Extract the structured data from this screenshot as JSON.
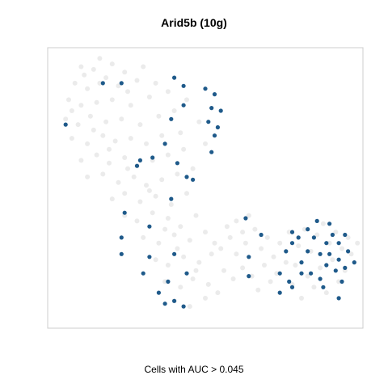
{
  "chart_data": {
    "type": "scatter",
    "title": "Arid5b (10g)",
    "caption": "Cells with AUC > 0.045",
    "xlim": [
      0,
      1
    ],
    "ylim": [
      0,
      1
    ],
    "axes_visible": false,
    "grid": false,
    "colors": {
      "background_points": "#e6e6e6",
      "highlight_points": "#1f5a8a",
      "frame": "#cccccc"
    },
    "background_points": [
      [
        0.1,
        0.94
      ],
      [
        0.14,
        0.93
      ],
      [
        0.2,
        0.95
      ],
      [
        0.24,
        0.92
      ],
      [
        0.3,
        0.94
      ],
      [
        0.08,
        0.88
      ],
      [
        0.12,
        0.86
      ],
      [
        0.16,
        0.88
      ],
      [
        0.22,
        0.87
      ],
      [
        0.28,
        0.89
      ],
      [
        0.34,
        0.88
      ],
      [
        0.06,
        0.82
      ],
      [
        0.1,
        0.8
      ],
      [
        0.15,
        0.81
      ],
      [
        0.2,
        0.82
      ],
      [
        0.26,
        0.8
      ],
      [
        0.32,
        0.83
      ],
      [
        0.38,
        0.85
      ],
      [
        0.05,
        0.75
      ],
      [
        0.09,
        0.73
      ],
      [
        0.13,
        0.76
      ],
      [
        0.18,
        0.74
      ],
      [
        0.23,
        0.75
      ],
      [
        0.29,
        0.73
      ],
      [
        0.35,
        0.76
      ],
      [
        0.4,
        0.78
      ],
      [
        0.44,
        0.82
      ],
      [
        0.07,
        0.68
      ],
      [
        0.12,
        0.66
      ],
      [
        0.17,
        0.69
      ],
      [
        0.21,
        0.67
      ],
      [
        0.26,
        0.68
      ],
      [
        0.31,
        0.66
      ],
      [
        0.36,
        0.69
      ],
      [
        0.42,
        0.7
      ],
      [
        0.48,
        0.74
      ],
      [
        0.1,
        0.6
      ],
      [
        0.15,
        0.62
      ],
      [
        0.19,
        0.59
      ],
      [
        0.24,
        0.61
      ],
      [
        0.28,
        0.58
      ],
      [
        0.33,
        0.6
      ],
      [
        0.38,
        0.62
      ],
      [
        0.43,
        0.64
      ],
      [
        0.5,
        0.66
      ],
      [
        0.12,
        0.54
      ],
      [
        0.17,
        0.55
      ],
      [
        0.22,
        0.52
      ],
      [
        0.27,
        0.54
      ],
      [
        0.31,
        0.51
      ],
      [
        0.36,
        0.53
      ],
      [
        0.41,
        0.55
      ],
      [
        0.46,
        0.57
      ],
      [
        0.2,
        0.46
      ],
      [
        0.24,
        0.48
      ],
      [
        0.29,
        0.45
      ],
      [
        0.34,
        0.47
      ],
      [
        0.39,
        0.44
      ],
      [
        0.44,
        0.48
      ],
      [
        0.24,
        0.4
      ],
      [
        0.28,
        0.38
      ],
      [
        0.33,
        0.41
      ],
      [
        0.38,
        0.39
      ],
      [
        0.42,
        0.36
      ],
      [
        0.47,
        0.4
      ],
      [
        0.3,
        0.32
      ],
      [
        0.35,
        0.3
      ],
      [
        0.4,
        0.33
      ],
      [
        0.45,
        0.31
      ],
      [
        0.5,
        0.34
      ],
      [
        0.34,
        0.24
      ],
      [
        0.38,
        0.22
      ],
      [
        0.43,
        0.25
      ],
      [
        0.48,
        0.23
      ],
      [
        0.52,
        0.26
      ],
      [
        0.37,
        0.16
      ],
      [
        0.42,
        0.14
      ],
      [
        0.46,
        0.17
      ],
      [
        0.51,
        0.15
      ],
      [
        0.4,
        0.09
      ],
      [
        0.45,
        0.07
      ],
      [
        0.5,
        0.1
      ],
      [
        0.55,
        0.28
      ],
      [
        0.58,
        0.32
      ],
      [
        0.6,
        0.26
      ],
      [
        0.63,
        0.3
      ],
      [
        0.66,
        0.35
      ],
      [
        0.68,
        0.28
      ],
      [
        0.7,
        0.32
      ],
      [
        0.72,
        0.25
      ],
      [
        0.56,
        0.2
      ],
      [
        0.59,
        0.17
      ],
      [
        0.62,
        0.21
      ],
      [
        0.65,
        0.18
      ],
      [
        0.69,
        0.22
      ],
      [
        0.73,
        0.19
      ],
      [
        0.76,
        0.23
      ],
      [
        0.74,
        0.3
      ],
      [
        0.77,
        0.34
      ],
      [
        0.8,
        0.29
      ],
      [
        0.82,
        0.35
      ],
      [
        0.84,
        0.27
      ],
      [
        0.86,
        0.33
      ],
      [
        0.88,
        0.37
      ],
      [
        0.9,
        0.3
      ],
      [
        0.92,
        0.34
      ],
      [
        0.94,
        0.28
      ],
      [
        0.96,
        0.32
      ],
      [
        0.79,
        0.22
      ],
      [
        0.83,
        0.18
      ],
      [
        0.87,
        0.21
      ],
      [
        0.91,
        0.24
      ],
      [
        0.95,
        0.2
      ],
      [
        0.85,
        0.14
      ],
      [
        0.89,
        0.12
      ],
      [
        0.93,
        0.16
      ],
      [
        0.6,
        0.38
      ],
      [
        0.64,
        0.4
      ],
      [
        0.57,
        0.36
      ],
      [
        0.53,
        0.3
      ],
      [
        0.11,
        0.91
      ],
      [
        0.18,
        0.9
      ],
      [
        0.25,
        0.85
      ],
      [
        0.07,
        0.78
      ],
      [
        0.14,
        0.71
      ],
      [
        0.19,
        0.64
      ],
      [
        0.25,
        0.57
      ],
      [
        0.32,
        0.49
      ],
      [
        0.37,
        0.35
      ],
      [
        0.41,
        0.28
      ],
      [
        0.47,
        0.2
      ],
      [
        0.54,
        0.12
      ],
      [
        0.67,
        0.13
      ],
      [
        0.71,
        0.16
      ],
      [
        0.78,
        0.15
      ],
      [
        0.81,
        0.1
      ],
      [
        0.97,
        0.26
      ],
      [
        0.99,
        0.3
      ],
      [
        0.62,
        0.34
      ],
      [
        0.16,
        0.97
      ]
    ],
    "highlight_points": [
      [
        0.05,
        0.73
      ],
      [
        0.17,
        0.88
      ],
      [
        0.23,
        0.88
      ],
      [
        0.4,
        0.9
      ],
      [
        0.43,
        0.87
      ],
      [
        0.5,
        0.86
      ],
      [
        0.53,
        0.84
      ],
      [
        0.43,
        0.8
      ],
      [
        0.52,
        0.79
      ],
      [
        0.55,
        0.78
      ],
      [
        0.39,
        0.75
      ],
      [
        0.51,
        0.74
      ],
      [
        0.54,
        0.72
      ],
      [
        0.53,
        0.69
      ],
      [
        0.37,
        0.66
      ],
      [
        0.52,
        0.63
      ],
      [
        0.33,
        0.61
      ],
      [
        0.28,
        0.58
      ],
      [
        0.41,
        0.59
      ],
      [
        0.29,
        0.6
      ],
      [
        0.44,
        0.54
      ],
      [
        0.46,
        0.53
      ],
      [
        0.39,
        0.46
      ],
      [
        0.24,
        0.41
      ],
      [
        0.32,
        0.36
      ],
      [
        0.23,
        0.32
      ],
      [
        0.23,
        0.26
      ],
      [
        0.32,
        0.25
      ],
      [
        0.4,
        0.26
      ],
      [
        0.3,
        0.19
      ],
      [
        0.44,
        0.19
      ],
      [
        0.38,
        0.16
      ],
      [
        0.35,
        0.12
      ],
      [
        0.4,
        0.09
      ],
      [
        0.37,
        0.08
      ],
      [
        0.43,
        0.07
      ],
      [
        0.63,
        0.39
      ],
      [
        0.68,
        0.33
      ],
      [
        0.64,
        0.25
      ],
      [
        0.64,
        0.18
      ],
      [
        0.74,
        0.19
      ],
      [
        0.74,
        0.12
      ],
      [
        0.78,
        0.14
      ],
      [
        0.76,
        0.27
      ],
      [
        0.77,
        0.16
      ],
      [
        0.81,
        0.23
      ],
      [
        0.81,
        0.19
      ],
      [
        0.78,
        0.3
      ],
      [
        0.8,
        0.32
      ],
      [
        0.78,
        0.34
      ],
      [
        0.83,
        0.35
      ],
      [
        0.85,
        0.32
      ],
      [
        0.86,
        0.38
      ],
      [
        0.9,
        0.37
      ],
      [
        0.89,
        0.3
      ],
      [
        0.91,
        0.33
      ],
      [
        0.93,
        0.3
      ],
      [
        0.9,
        0.26
      ],
      [
        0.93,
        0.24
      ],
      [
        0.92,
        0.2
      ],
      [
        0.95,
        0.21
      ],
      [
        0.96,
        0.27
      ],
      [
        0.98,
        0.23
      ],
      [
        0.87,
        0.26
      ],
      [
        0.84,
        0.19
      ],
      [
        0.87,
        0.17
      ],
      [
        0.89,
        0.22
      ],
      [
        0.93,
        0.1
      ],
      [
        0.88,
        0.14
      ],
      [
        0.95,
        0.33
      ],
      [
        0.83,
        0.27
      ],
      [
        0.94,
        0.16
      ]
    ]
  }
}
